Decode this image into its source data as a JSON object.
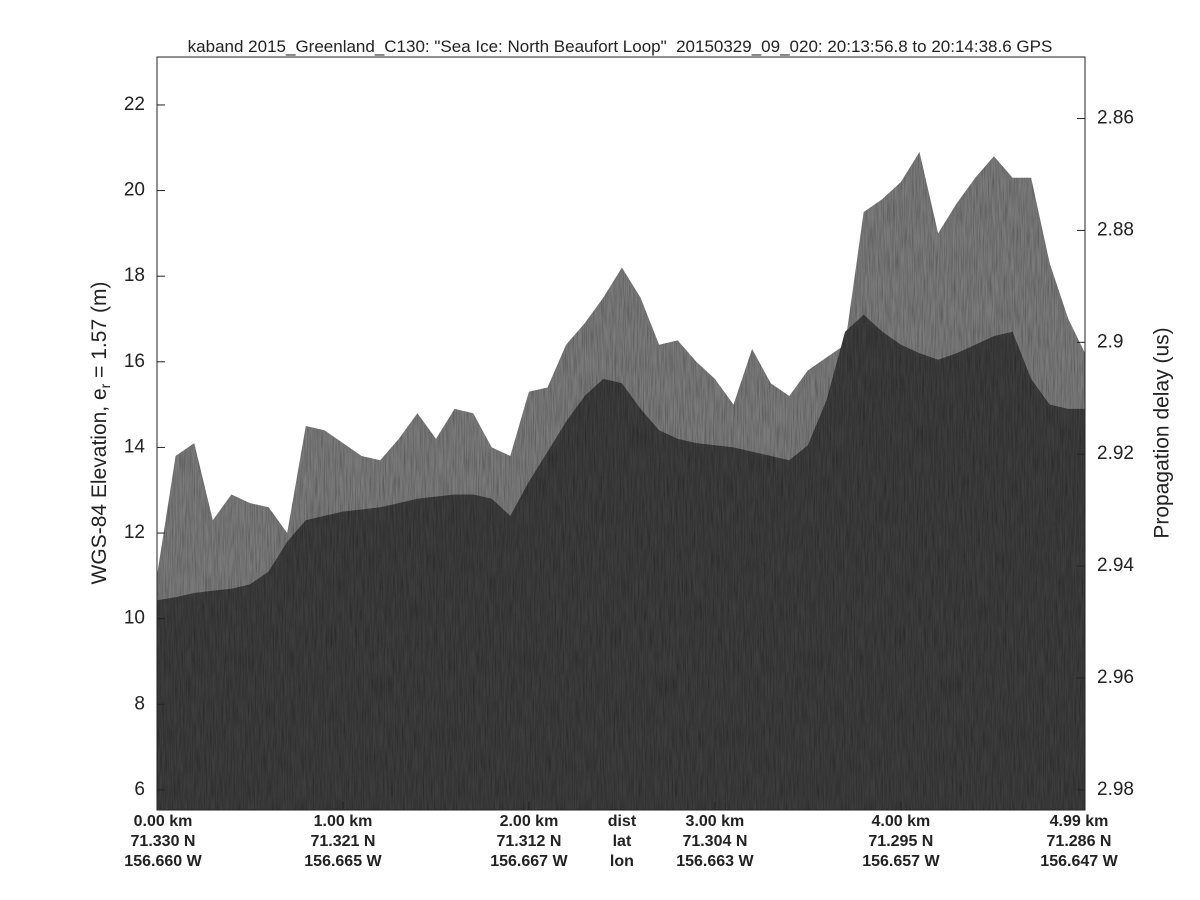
{
  "chart_data": {
    "type": "echogram",
    "title": "kaband 2015_Greenland_C130: \"Sea Ice: North Beaufort Loop\"  20150329_09_020: 20:13:56.8 to 20:14:38.6 GPS",
    "ylabel": {
      "text": "WGS-84 Elevation, e",
      "subscript": "r",
      "suffix": " = 1.57 (m)"
    },
    "y2label": "Propagation delay (us)",
    "x": [
      0,
      0.1,
      0.2,
      0.3,
      0.4,
      0.5,
      0.6,
      0.7,
      0.8,
      0.9,
      1.0,
      1.1,
      1.2,
      1.3,
      1.4,
      1.5,
      1.6,
      1.7,
      1.8,
      1.9,
      2.0,
      2.1,
      2.2,
      2.3,
      2.4,
      2.5,
      2.6,
      2.7,
      2.8,
      2.9,
      3.0,
      3.1,
      3.2,
      3.3,
      3.4,
      3.5,
      3.6,
      3.7,
      3.8,
      3.9,
      4.0,
      4.1,
      4.2,
      4.3,
      4.4,
      4.5,
      4.6,
      4.7,
      4.8,
      4.9,
      4.99
    ],
    "series": [
      {
        "color": "#7a7a7a",
        "values": [
          11.0,
          13.8,
          14.1,
          12.3,
          12.9,
          12.7,
          12.6,
          12.0,
          14.5,
          14.4,
          14.1,
          13.8,
          13.7,
          14.2,
          14.8,
          14.2,
          14.9,
          14.8,
          14.0,
          13.8,
          15.3,
          15.4,
          16.4,
          16.9,
          17.5,
          18.2,
          17.5,
          16.4,
          16.5,
          16.0,
          15.6,
          15.0,
          16.3,
          15.5,
          15.2,
          15.8,
          16.1,
          16.4,
          19.5,
          19.8,
          20.2,
          20.9,
          19.0,
          19.7,
          20.3,
          20.8,
          20.3,
          20.3,
          18.3,
          17.0,
          16.2
        ]
      },
      {
        "color": "#3c3c3c",
        "values": [
          10.43,
          10.5,
          10.6,
          10.65,
          10.7,
          10.8,
          11.1,
          11.8,
          12.3,
          12.4,
          12.5,
          12.55,
          12.6,
          12.7,
          12.8,
          12.85,
          12.9,
          12.9,
          12.8,
          12.4,
          13.2,
          13.9,
          14.6,
          15.2,
          15.6,
          15.5,
          14.9,
          14.4,
          14.2,
          14.1,
          14.05,
          14.0,
          13.9,
          13.8,
          13.7,
          14.05,
          15.1,
          16.7,
          17.1,
          16.7,
          16.4,
          16.2,
          16.05,
          16.2,
          16.4,
          16.6,
          16.7,
          15.6,
          15.0,
          14.9,
          14.9
        ]
      }
    ],
    "xlim": [
      0,
      4.99
    ],
    "xticks": [
      {
        "value": 0,
        "label": "0.00 km"
      },
      {
        "value": 1,
        "label": "1.00 km"
      },
      {
        "value": 2,
        "label": "2.00 km"
      },
      {
        "value": 3,
        "label": "3.00 km"
      },
      {
        "value": 4,
        "label": "4.00 km"
      },
      {
        "value": 4.99,
        "label": "4.99 km"
      }
    ],
    "lat_labels": [
      "71.330 N",
      "71.321 N",
      "71.312 N",
      "71.304 N",
      "71.295 N",
      "71.286 N"
    ],
    "lon_labels": [
      "156.660 W",
      "156.665 W",
      "156.667 W",
      "156.663 W",
      "156.657 W",
      "156.647 W"
    ],
    "row_labels": [
      "dist",
      "lat",
      "lon"
    ],
    "ylim": [
      5.53,
      23.12
    ],
    "yticks": [
      6,
      8,
      10,
      12,
      14,
      16,
      18,
      20,
      22
    ],
    "y2lim": [
      2.9836,
      2.849
    ],
    "y2ticks": [
      2.86,
      2.88,
      2.9,
      2.92,
      2.94,
      2.96,
      2.98
    ]
  }
}
